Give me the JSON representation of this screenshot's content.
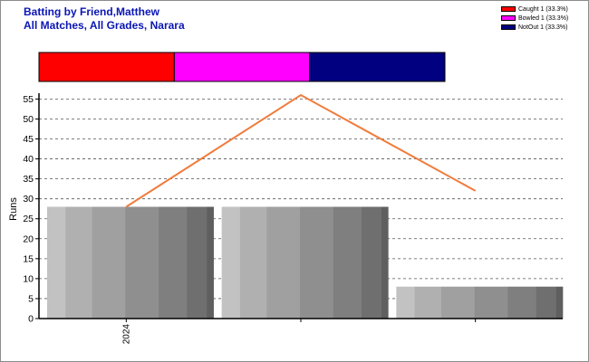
{
  "title_line1": "Batting by Friend,Matthew",
  "title_line2": "All Matches, All Grades, Narara",
  "legend": [
    {
      "label": "Caught 1 (33.3%)",
      "color": "#ff0000"
    },
    {
      "label": "Bowled 1 (33.3%)",
      "color": "#ff00ff"
    },
    {
      "label": "NotOut 1 (33.3%)",
      "color": "#000080"
    }
  ],
  "chart_data": [
    {
      "type": "bar",
      "orientation": "horizontal-stacked",
      "segments": [
        {
          "name": "Caught",
          "value": 1,
          "color": "#ff0000"
        },
        {
          "name": "Bowled",
          "value": 1,
          "color": "#ff00ff"
        },
        {
          "name": "NotOut",
          "value": 1,
          "color": "#000080"
        }
      ]
    },
    {
      "type": "bar",
      "ylabel": "Runs",
      "ylim": [
        0,
        56
      ],
      "yticks": [
        0,
        5,
        10,
        15,
        20,
        25,
        30,
        35,
        40,
        45,
        50,
        55
      ],
      "grid": true,
      "x_tick_labels": [
        "2024",
        "",
        ""
      ],
      "values": [
        28,
        28,
        8
      ],
      "line": {
        "values": [
          28,
          56,
          32
        ],
        "color": "#f07c3c"
      }
    }
  ]
}
